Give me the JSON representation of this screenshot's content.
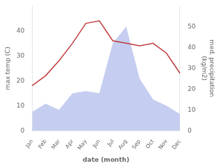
{
  "chart_data": {
    "type": "line",
    "categories": [
      "Jan",
      "Feb",
      "Mar",
      "Apr",
      "May",
      "Jun",
      "Jul",
      "Aug",
      "Sep",
      "Oct",
      "Nov",
      "Dec"
    ],
    "series": [
      {
        "type": "area",
        "color": "#c5cef0",
        "axis": "y2",
        "values": [
          9,
          13,
          10,
          18,
          19,
          18,
          42,
          50,
          25,
          15,
          12,
          8
        ]
      },
      {
        "type": "line",
        "color": "#c0393b",
        "values": [
          18,
          22,
          28,
          35,
          43,
          44,
          36,
          35,
          34,
          35,
          31,
          23
        ]
      }
    ],
    "xlabel": "date (month)",
    "ylabel": "max temp (C)",
    "y2label": "med. precipitation\n(kg/m2)",
    "ylim": [
      0,
      50
    ],
    "yticks": [
      0,
      10,
      20,
      30,
      40
    ],
    "y2lim": [
      0,
      60
    ],
    "y2ticks": [
      0,
      10,
      20,
      30,
      40,
      50
    ],
    "grid": false
  }
}
